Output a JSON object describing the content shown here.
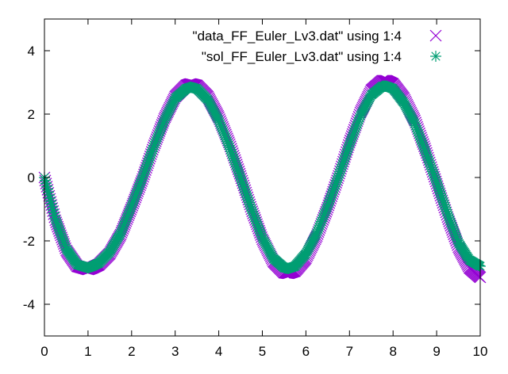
{
  "chart_data": {
    "type": "scatter",
    "title": "",
    "xlabel": "",
    "ylabel": "",
    "xlim": [
      0,
      10
    ],
    "ylim": [
      -5,
      5
    ],
    "xticks": [
      "0",
      "1",
      "2",
      "3",
      "4",
      "5",
      "6",
      "7",
      "8",
      "9",
      "10"
    ],
    "yticks": [
      "-4",
      "-2",
      "0",
      "2",
      "4"
    ],
    "grid": false,
    "legend_placement": "top-right",
    "series": [
      {
        "name": "\"data_FF_Euler_Lv3.dat\" using 1:4",
        "marker": "x",
        "color": "#9400d3",
        "points": [
          [
            0.0,
            0.0
          ],
          [
            0.25,
            -1.35
          ],
          [
            0.5,
            -2.3
          ],
          [
            0.75,
            -2.8
          ],
          [
            1.0,
            -2.9
          ],
          [
            1.1,
            -2.85
          ],
          [
            1.25,
            -2.75
          ],
          [
            1.5,
            -2.4
          ],
          [
            1.75,
            -1.8
          ],
          [
            2.0,
            -0.95
          ],
          [
            2.25,
            -0.05
          ],
          [
            2.5,
            0.95
          ],
          [
            2.75,
            1.85
          ],
          [
            3.0,
            2.55
          ],
          [
            3.25,
            2.9
          ],
          [
            3.35,
            2.95
          ],
          [
            3.5,
            2.9
          ],
          [
            3.75,
            2.55
          ],
          [
            4.0,
            1.9
          ],
          [
            4.25,
            1.05
          ],
          [
            4.5,
            0.05
          ],
          [
            4.75,
            -1.0
          ],
          [
            5.0,
            -1.95
          ],
          [
            5.25,
            -2.65
          ],
          [
            5.5,
            -3.0
          ],
          [
            5.6,
            -3.02
          ],
          [
            5.75,
            -2.95
          ],
          [
            6.0,
            -2.55
          ],
          [
            6.25,
            -1.85
          ],
          [
            6.5,
            -0.95
          ],
          [
            6.75,
            0.05
          ],
          [
            7.0,
            1.1
          ],
          [
            7.25,
            2.05
          ],
          [
            7.5,
            2.75
          ],
          [
            7.75,
            3.05
          ],
          [
            7.85,
            3.05
          ],
          [
            8.0,
            2.95
          ],
          [
            8.25,
            2.5
          ],
          [
            8.5,
            1.8
          ],
          [
            8.75,
            0.85
          ],
          [
            9.0,
            -0.2
          ],
          [
            9.25,
            -1.25
          ],
          [
            9.5,
            -2.2
          ],
          [
            9.75,
            -2.85
          ],
          [
            10.0,
            -3.15
          ]
        ]
      },
      {
        "name": "\"sol_FF_Euler_Lv3.dat\" using 1:4",
        "marker": "asterisk",
        "color": "#009e73",
        "points": [
          [
            0.0,
            0.0
          ],
          [
            0.25,
            -1.3
          ],
          [
            0.5,
            -2.25
          ],
          [
            0.75,
            -2.75
          ],
          [
            1.0,
            -2.85
          ],
          [
            1.1,
            -2.8
          ],
          [
            1.25,
            -2.7
          ],
          [
            1.5,
            -2.35
          ],
          [
            1.75,
            -1.75
          ],
          [
            2.0,
            -0.9
          ],
          [
            2.25,
            0.0
          ],
          [
            2.5,
            0.95
          ],
          [
            2.75,
            1.8
          ],
          [
            3.0,
            2.5
          ],
          [
            3.25,
            2.8
          ],
          [
            3.35,
            2.85
          ],
          [
            3.5,
            2.8
          ],
          [
            3.75,
            2.45
          ],
          [
            4.0,
            1.8
          ],
          [
            4.25,
            0.95
          ],
          [
            4.5,
            0.0
          ],
          [
            4.75,
            -1.0
          ],
          [
            5.0,
            -1.9
          ],
          [
            5.25,
            -2.55
          ],
          [
            5.5,
            -2.85
          ],
          [
            5.6,
            -2.87
          ],
          [
            5.75,
            -2.8
          ],
          [
            6.0,
            -2.4
          ],
          [
            6.25,
            -1.75
          ],
          [
            6.5,
            -0.9
          ],
          [
            6.75,
            0.05
          ],
          [
            7.0,
            1.05
          ],
          [
            7.25,
            1.95
          ],
          [
            7.5,
            2.6
          ],
          [
            7.75,
            2.88
          ],
          [
            7.85,
            2.88
          ],
          [
            8.0,
            2.8
          ],
          [
            8.25,
            2.35
          ],
          [
            8.5,
            1.7
          ],
          [
            8.75,
            0.8
          ],
          [
            9.0,
            -0.15
          ],
          [
            9.25,
            -1.15
          ],
          [
            9.5,
            -2.05
          ],
          [
            9.75,
            -2.6
          ],
          [
            10.0,
            -2.8
          ]
        ]
      }
    ]
  }
}
